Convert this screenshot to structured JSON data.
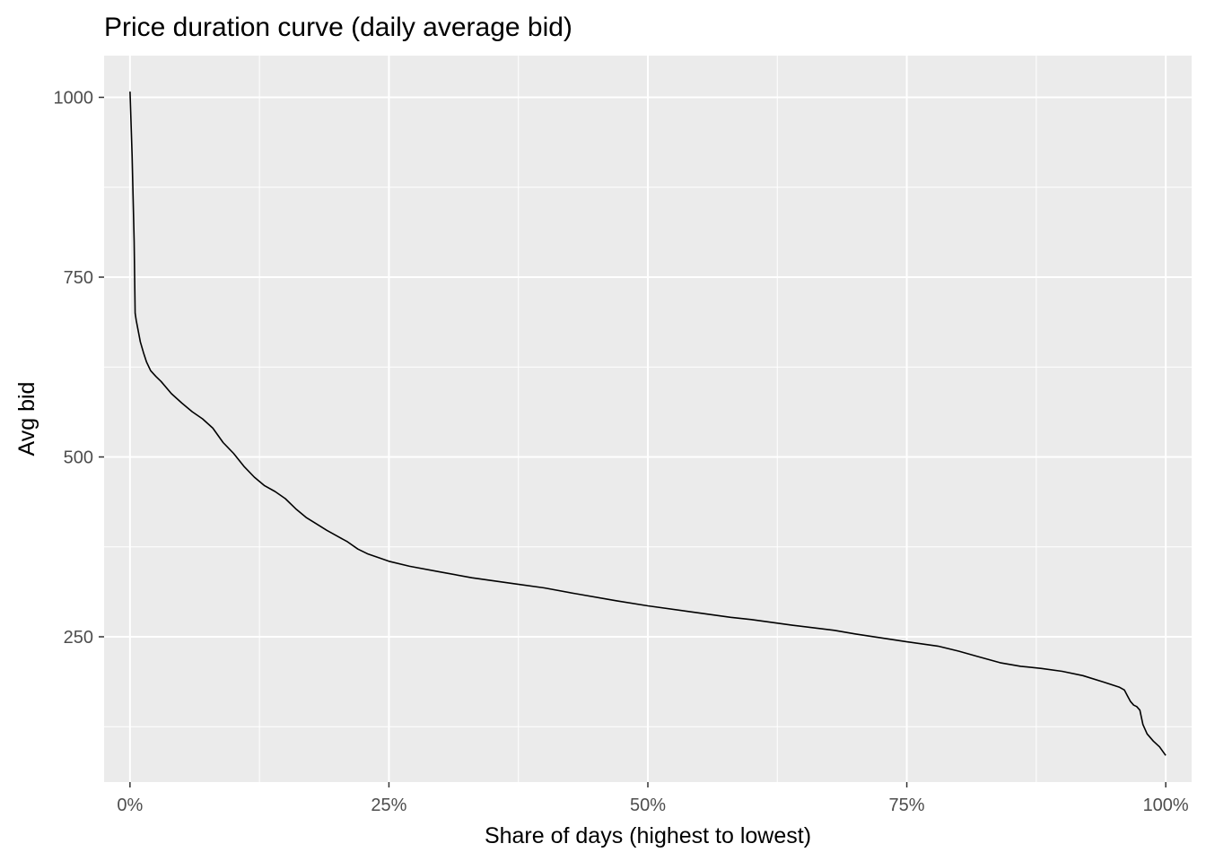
{
  "chart_data": {
    "type": "line",
    "title": "Price duration curve (daily average bid)",
    "xlabel": "Share of days (highest to lowest)",
    "ylabel": "Avg bid",
    "xlim": [
      -0.025,
      1.025
    ],
    "ylim": [
      48,
      1058
    ],
    "x_ticks": [
      0,
      0.25,
      0.5,
      0.75,
      1.0
    ],
    "x_tick_labels": [
      "0%",
      "25%",
      "50%",
      "75%",
      "100%"
    ],
    "y_ticks": [
      250,
      500,
      750,
      1000
    ],
    "y_tick_labels": [
      "250",
      "500",
      "750",
      "1000"
    ],
    "grid": true,
    "legend": "none",
    "colors": {
      "panel": "#ebebeb",
      "grid": "#ffffff",
      "line": "#000000",
      "ticks": "#4d4d4d"
    },
    "series": [
      {
        "x": [
          0.0,
          0.002,
          0.004,
          0.005,
          0.006,
          0.008,
          0.01,
          0.013,
          0.016,
          0.02,
          0.025,
          0.03,
          0.04,
          0.05,
          0.06,
          0.07,
          0.08,
          0.09,
          0.1,
          0.11,
          0.12,
          0.13,
          0.14,
          0.15,
          0.16,
          0.17,
          0.18,
          0.19,
          0.2,
          0.21,
          0.22,
          0.23,
          0.24,
          0.25,
          0.27,
          0.3,
          0.33,
          0.37,
          0.4,
          0.43,
          0.47,
          0.5,
          0.54,
          0.58,
          0.6,
          0.64,
          0.68,
          0.7,
          0.75,
          0.78,
          0.8,
          0.82,
          0.84,
          0.86,
          0.88,
          0.9,
          0.92,
          0.94,
          0.955,
          0.96,
          0.963,
          0.966,
          0.969,
          0.972,
          0.975,
          0.978,
          0.982,
          0.988,
          0.994,
          1.0
        ],
        "y": [
          1008,
          920,
          800,
          700,
          690,
          675,
          660,
          645,
          632,
          620,
          612,
          605,
          588,
          575,
          563,
          553,
          540,
          520,
          505,
          487,
          472,
          460,
          452,
          442,
          428,
          416,
          407,
          398,
          390,
          382,
          372,
          365,
          360,
          355,
          348,
          340,
          332,
          324,
          318,
          310,
          300,
          293,
          285,
          277,
          274,
          266,
          259,
          254,
          243,
          237,
          230,
          222,
          214,
          209,
          206,
          202,
          196,
          187,
          180,
          176,
          168,
          160,
          155,
          153,
          148,
          128,
          115,
          105,
          97,
          85
        ]
      }
    ]
  }
}
